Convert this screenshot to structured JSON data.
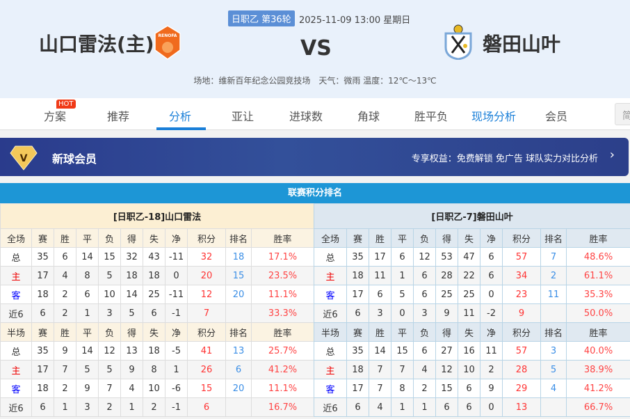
{
  "match": {
    "league_round": "日职乙 第36轮",
    "datetime": "2025-11-09 13:00 星期日",
    "home": "山口雷法(主)",
    "away": "磐田山叶",
    "vs": "VS",
    "venue": "场地：维新百年纪念公园竞技场　天气：微雨 温度：12℃～13℃",
    "home_logo_text": "RENOFA"
  },
  "nav": {
    "items": [
      "方案",
      "推荐",
      "分析",
      "亚让",
      "进球数",
      "角球",
      "胜平负",
      "现场分析",
      "会员"
    ],
    "active": "分析",
    "hot_badge": "HOT",
    "lang_button": "简"
  },
  "banner": {
    "title": "新球会员",
    "benefits": "专享权益：免费解锁 免广告 球队实力对比分析"
  },
  "section_title": "联赛积分排名",
  "colors": {
    "accent": "#1a7fd8",
    "section_bar": "#1d96d6",
    "points": "#ff3333",
    "rank": "#3a8ee6",
    "home_label": "#ee0000",
    "away_label": "#0000ff"
  },
  "tables": [
    {
      "title": "[日职乙-18]山口雷法",
      "full_header": [
        "全场",
        "赛",
        "胜",
        "平",
        "负",
        "得",
        "失",
        "净",
        "积分",
        "排名",
        "胜率"
      ],
      "full": [
        [
          "总",
          "35",
          "6",
          "14",
          "15",
          "32",
          "43",
          "-11",
          "32",
          "18",
          "17.1%"
        ],
        [
          "主",
          "17",
          "4",
          "8",
          "5",
          "18",
          "18",
          "0",
          "20",
          "15",
          "23.5%"
        ],
        [
          "客",
          "18",
          "2",
          "6",
          "10",
          "14",
          "25",
          "-11",
          "12",
          "20",
          "11.1%"
        ],
        [
          "近6",
          "6",
          "2",
          "1",
          "3",
          "5",
          "6",
          "-1",
          "7",
          "",
          "33.3%"
        ]
      ],
      "half_header": [
        "半场",
        "赛",
        "胜",
        "平",
        "负",
        "得",
        "失",
        "净",
        "积分",
        "排名",
        "胜率"
      ],
      "half": [
        [
          "总",
          "35",
          "9",
          "14",
          "12",
          "13",
          "18",
          "-5",
          "41",
          "13",
          "25.7%"
        ],
        [
          "主",
          "17",
          "7",
          "5",
          "5",
          "9",
          "8",
          "1",
          "26",
          "6",
          "41.2%"
        ],
        [
          "客",
          "18",
          "2",
          "9",
          "7",
          "4",
          "10",
          "-6",
          "15",
          "20",
          "11.1%"
        ],
        [
          "近6",
          "6",
          "1",
          "3",
          "2",
          "1",
          "2",
          "-1",
          "6",
          "",
          "16.7%"
        ]
      ]
    },
    {
      "title": "[日职乙-7]磐田山叶",
      "full_header": [
        "全场",
        "赛",
        "胜",
        "平",
        "负",
        "得",
        "失",
        "净",
        "积分",
        "排名",
        "胜率"
      ],
      "full": [
        [
          "总",
          "35",
          "17",
          "6",
          "12",
          "53",
          "47",
          "6",
          "57",
          "7",
          "48.6%"
        ],
        [
          "主",
          "18",
          "11",
          "1",
          "6",
          "28",
          "22",
          "6",
          "34",
          "2",
          "61.1%"
        ],
        [
          "客",
          "17",
          "6",
          "5",
          "6",
          "25",
          "25",
          "0",
          "23",
          "11",
          "35.3%"
        ],
        [
          "近6",
          "6",
          "3",
          "0",
          "3",
          "9",
          "11",
          "-2",
          "9",
          "",
          "50.0%"
        ]
      ],
      "half_header": [
        "半场",
        "赛",
        "胜",
        "平",
        "负",
        "得",
        "失",
        "净",
        "积分",
        "排名",
        "胜率"
      ],
      "half": [
        [
          "总",
          "35",
          "14",
          "15",
          "6",
          "27",
          "16",
          "11",
          "57",
          "3",
          "40.0%"
        ],
        [
          "主",
          "18",
          "7",
          "7",
          "4",
          "12",
          "10",
          "2",
          "28",
          "5",
          "38.9%"
        ],
        [
          "客",
          "17",
          "7",
          "8",
          "2",
          "15",
          "6",
          "9",
          "29",
          "4",
          "41.2%"
        ],
        [
          "近6",
          "6",
          "4",
          "1",
          "1",
          "6",
          "6",
          "0",
          "13",
          "",
          "66.7%"
        ]
      ]
    }
  ]
}
